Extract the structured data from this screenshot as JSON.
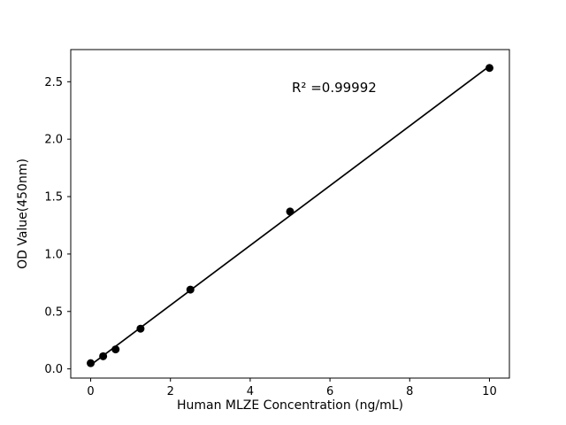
{
  "chart_data": {
    "type": "scatter",
    "title": "",
    "xlabel": "Human MLZE Concentration (ng/mL)",
    "ylabel": "OD Value(450nm)",
    "annotation": "R² =0.99992",
    "x": [
      0,
      0.3125,
      0.625,
      1.25,
      2.5,
      5,
      10
    ],
    "y": [
      0.05,
      0.11,
      0.17,
      0.35,
      0.69,
      1.37,
      2.62
    ],
    "xlim": [
      -0.5,
      10.5
    ],
    "ylim": [
      -0.08,
      2.78
    ],
    "xticks": [
      0,
      2,
      4,
      6,
      8,
      10
    ],
    "xtick_labels": [
      "0",
      "2",
      "4",
      "6",
      "8",
      "10"
    ],
    "yticks": [
      0.0,
      0.5,
      1.0,
      1.5,
      2.0,
      2.5
    ],
    "ytick_labels": [
      "0.0",
      "0.5",
      "1.0",
      "1.5",
      "2.0",
      "2.5"
    ],
    "line_color": "#000000",
    "marker_color": "#000000",
    "background_color": "#ffffff",
    "grid": false,
    "legend": null
  }
}
